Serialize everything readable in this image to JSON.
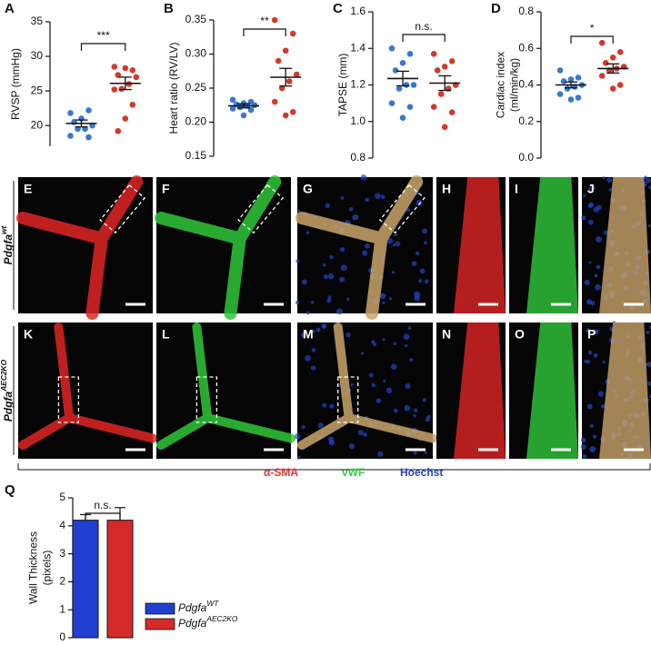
{
  "chart_data": [
    {
      "type": "strip",
      "panel": "A",
      "ylabel": [
        "RVSP (mmHg)"
      ],
      "ylim": [
        17,
        35
      ],
      "yticks": [
        20,
        25,
        30,
        35
      ],
      "annotation": "***",
      "series": [
        {
          "color": "#3a78d0",
          "values": [
            21.8,
            22.2,
            21,
            20.5,
            20,
            19.5,
            19.5,
            18.5,
            18.3
          ],
          "mean": 20.3,
          "error": 0.5
        },
        {
          "color": "#d2392b",
          "values": [
            28.5,
            28,
            28.3,
            27.3,
            27,
            26,
            25.3,
            25.2,
            23,
            21,
            19.2
          ],
          "mean": 26.1,
          "error": 0.9
        }
      ]
    },
    {
      "type": "strip",
      "panel": "B",
      "ylabel": [
        "Heart ratio (RV/LV)"
      ],
      "ylim": [
        0.15,
        0.35
      ],
      "yticks": [
        0.15,
        {
          "value": 0.2,
          "label": "0.20"
        },
        0.25,
        {
          "value": 0.3,
          "label": "0.30"
        },
        0.35
      ],
      "annotation": "**",
      "series": [
        {
          "color": "#3a78d0",
          "values": [
            0.233,
            0.23,
            0.228,
            0.226,
            0.225,
            0.224,
            0.222,
            0.22,
            0.218,
            0.21
          ],
          "mean": 0.224,
          "error": 0.003
        },
        {
          "color": "#d2392b",
          "values": [
            0.35,
            0.33,
            0.305,
            0.29,
            0.27,
            0.26,
            0.25,
            0.23,
            0.215,
            0.21
          ],
          "mean": 0.266,
          "error": 0.013
        }
      ]
    },
    {
      "type": "strip",
      "panel": "C",
      "ylabel": [
        "TAPSE (mm)"
      ],
      "ylim": [
        0.8,
        1.6
      ],
      "yticks": [
        0.8,
        {
          "value": 1,
          "label": "1.0"
        },
        1.2,
        1.4,
        1.6
      ],
      "annotation": "n.s.",
      "series": [
        {
          "color": "#3a78d0",
          "values": [
            1.4,
            1.37,
            1.32,
            1.28,
            1.2,
            1.2,
            1.18,
            1.1,
            1.08,
            1.02
          ],
          "mean": 1.235,
          "error": 0.04
        },
        {
          "color": "#d2392b",
          "values": [
            1.37,
            1.33,
            1.3,
            1.28,
            1.2,
            1.18,
            1.15,
            1.08,
            1.05,
            0.97
          ],
          "mean": 1.21,
          "error": 0.04
        }
      ]
    },
    {
      "type": "strip",
      "panel": "D",
      "ylabel": [
        "Cardiac index",
        "(ml/min/kg)"
      ],
      "ylim": [
        0,
        0.8
      ],
      "yticks": [
        {
          "value": 0,
          "label": "0.0"
        },
        0.2,
        0.4,
        0.6,
        0.8
      ],
      "annotation": "*",
      "series": [
        {
          "color": "#3a78d0",
          "values": [
            0.48,
            0.44,
            0.43,
            0.42,
            0.4,
            0.39,
            0.38,
            0.35,
            0.33,
            0.32
          ],
          "mean": 0.4,
          "error": 0.016
        },
        {
          "color": "#d2392b",
          "values": [
            0.63,
            0.58,
            0.55,
            0.52,
            0.5,
            0.49,
            0.48,
            0.45,
            0.4,
            0.38
          ],
          "mean": 0.49,
          "error": 0.025
        }
      ]
    },
    {
      "type": "bar",
      "panel": "Q",
      "ylabel": [
        "Wall Thickness",
        "(pixels)"
      ],
      "ylim": [
        0,
        5
      ],
      "yticks": [
        0,
        1,
        2,
        3,
        4,
        5
      ],
      "annotation": "n.s.",
      "values": [
        4.2,
        4.2
      ],
      "errors": [
        0.2,
        0.45
      ],
      "colors": [
        "#1f3fd1",
        "#d42a2a"
      ],
      "legend": [
        {
          "base": "Pdgfa",
          "sup": "WT"
        },
        {
          "base": "Pdgfa",
          "sup": "AEC2KO"
        }
      ]
    }
  ],
  "images": {
    "panels": [
      "E",
      "F",
      "G",
      "H",
      "I",
      "J",
      "K",
      "L",
      "M",
      "N",
      "O",
      "P"
    ],
    "rows": [
      {
        "base": "Pdgfa",
        "sup": "wt"
      },
      {
        "base": "Pdgfa",
        "sup": "AEC2KO"
      }
    ],
    "stains": [
      {
        "name": "α-SMA",
        "color": "#e8322a"
      },
      {
        "name": "vWF",
        "color": "#2fd43a"
      },
      {
        "name": "Hoechst",
        "color": "#2146c8"
      }
    ]
  }
}
